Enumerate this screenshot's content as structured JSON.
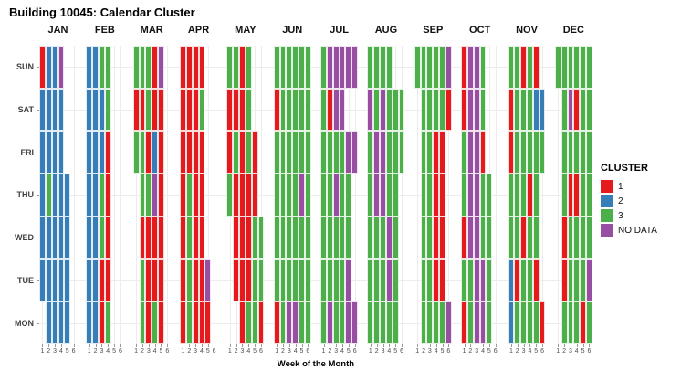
{
  "title": "Building 10045: Calendar Cluster",
  "x_axis": {
    "label": "Week of the Month",
    "ticks": [
      "1",
      "2",
      "3",
      "4",
      "5",
      "6"
    ]
  },
  "y_axis": {
    "days": [
      "SUN",
      "SAT",
      "FRI",
      "THU",
      "WED",
      "TUE",
      "MON"
    ]
  },
  "legend": {
    "title": "CLUSTER",
    "items": [
      {
        "label": "1",
        "color": "#e41a1c"
      },
      {
        "label": "2",
        "color": "#377eb8"
      },
      {
        "label": "3",
        "color": "#4daf4a"
      },
      {
        "label": "NO DATA",
        "color": "#984ea3"
      }
    ]
  },
  "chart_data": {
    "type": "heatmap",
    "title": "Building 10045: Calendar Cluster",
    "xlabel": "Week of the Month",
    "weeks": [
      1,
      2,
      3,
      4,
      5,
      6
    ],
    "days": [
      "SUN",
      "SAT",
      "FRI",
      "THU",
      "WED",
      "TUE",
      "MON"
    ],
    "legend_title": "CLUSTER",
    "cluster_colors": {
      "1": "#e41a1c",
      "2": "#377eb8",
      "3": "#4daf4a",
      "N": "#984ea3"
    },
    "code_meaning": {
      "1": "cluster 1",
      "2": "cluster 2",
      "3": "cluster 3",
      "N": "NO DATA",
      ".": "no tile"
    },
    "months": [
      {
        "name": "JAN",
        "rows": {
          "SUN": "122N..",
          "SAT": "2222..",
          "FRI": "2222..",
          "THU": "23222.",
          "WED": "22222.",
          "TUE": "22222.",
          "MON": ".2222."
        }
      },
      {
        "name": "FEB",
        "rows": {
          "SUN": "2233..",
          "SAT": "2223..",
          "FRI": "2221..",
          "THU": "2231..",
          "WED": "2231..",
          "TUE": "2211..",
          "MON": "2213.."
        }
      },
      {
        "name": "MAR",
        "rows": {
          "SUN": "3331N.",
          "SAT": "11311.",
          "FRI": "33121.",
          "THU": ".33N1.",
          "WED": ".1111.",
          "TUE": ".3111.",
          "MON": ".3131."
        }
      },
      {
        "name": "APR",
        "rows": {
          "SUN": "1111..",
          "SAT": "1113..",
          "FRI": "1111..",
          "THU": "1311..",
          "WED": "1311..",
          "TUE": "1311N.",
          "MON": "13111."
        }
      },
      {
        "name": "MAY",
        "rows": {
          "SUN": "3313..",
          "SAT": "1113..",
          "FRI": "13131.",
          "THU": "31111.",
          "WED": ".11133",
          "TUE": ".11133",
          "MON": "..1331"
        }
      },
      {
        "name": "JUN",
        "rows": {
          "SUN": "333333",
          "SAT": "133333",
          "FRI": "333333",
          "THU": "3333N3",
          "WED": "333333",
          "TUE": "333333",
          "MON": "13NN33"
        }
      },
      {
        "name": "JUL",
        "rows": {
          "SUN": "3NNNNN",
          "SAT": "31NN..",
          "FRI": "3333NN",
          "THU": "33N33.",
          "WED": "33333.",
          "TUE": "3333N.",
          "MON": "3N33NN"
        }
      },
      {
        "name": "AUG",
        "rows": {
          "SUN": "3333..",
          "SAT": "N3N333",
          "FRI": "3NN333",
          "THU": "3NN33.",
          "WED": "333N3.",
          "TUE": "333N3.",
          "MON": "33333."
        }
      },
      {
        "name": "SEP",
        "rows": {
          "SUN": "33333N",
          "SAT": ".33331",
          "FRI": ".3311.",
          "THU": ".3311.",
          "WED": ".3311.",
          "TUE": ".3311.",
          "MON": ".3333N"
        }
      },
      {
        "name": "OCT",
        "rows": {
          "SUN": "1NN3..",
          "SAT": "1NN3..",
          "FRI": "3NN1..",
          "THU": "3NN33.",
          "WED": "1NN33.",
          "TUE": "33NN3.",
          "MON": "13NN3."
        }
      },
      {
        "name": "NOV",
        "rows": {
          "SUN": "33131.",
          "SAT": "133322",
          "FRI": "133333",
          "THU": "33313.",
          "WED": "33133.",
          "TUE": "21331.",
          "MON": "233331"
        }
      },
      {
        "name": "DEC",
        "rows": {
          "SUN": "333333",
          "SAT": ".3N133",
          "FRI": ".33333",
          "THU": ".31133",
          "WED": ".13333",
          "TUE": ".1333N",
          "MON": ".33313"
        }
      }
    ]
  }
}
